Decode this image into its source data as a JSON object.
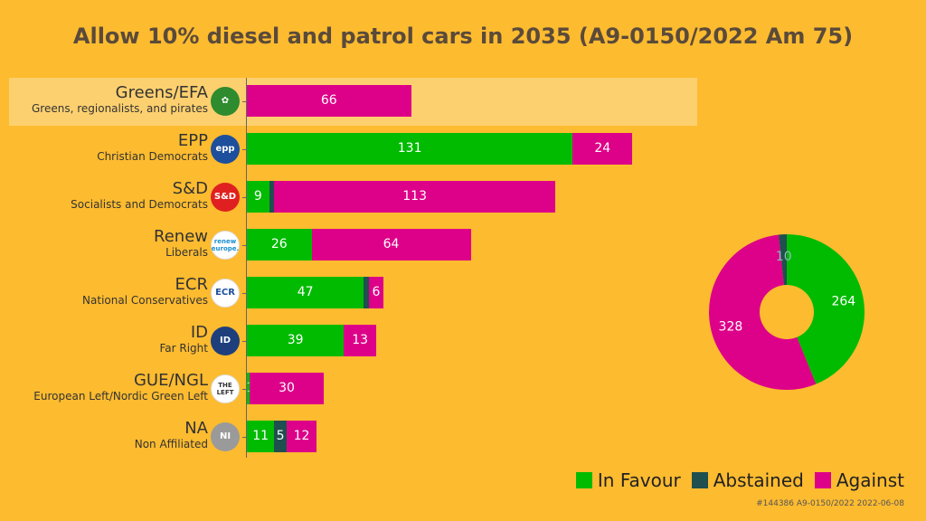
{
  "title": "Allow 10% diesel and patrol cars in 2035 (A9-0150/2022 Am 75)",
  "footnote": "#144386 A9-0150/2022 2022-06-08",
  "colors": {
    "favour": "#00BB00",
    "abstained": "#1F4F4F",
    "against": "#DD0088",
    "background": "#FDBB2F"
  },
  "legend": [
    {
      "key": "favour",
      "label": "In Favour"
    },
    {
      "key": "abstained",
      "label": "Abstained"
    },
    {
      "key": "against",
      "label": "Against"
    }
  ],
  "chart_data": [
    {
      "type": "bar",
      "orientation": "horizontal",
      "stacked": true,
      "categories": [
        {
          "name": "Greens/EFA",
          "desc": "Greens, regionalists, and pirates",
          "logo_icon": "greens-efa-logo",
          "highlight": true
        },
        {
          "name": "EPP",
          "desc": "Christian Democrats",
          "logo_icon": "epp-logo"
        },
        {
          "name": "S&D",
          "desc": "Socialists and Democrats",
          "logo_icon": "sd-logo"
        },
        {
          "name": "Renew",
          "desc": "Liberals",
          "logo_icon": "renew-europe-logo"
        },
        {
          "name": "ECR",
          "desc": "National Conservatives",
          "logo_icon": "ecr-logo"
        },
        {
          "name": "ID",
          "desc": "Far Right",
          "logo_icon": "id-logo"
        },
        {
          "name": "GUE/NGL",
          "desc": "European Left/Nordic Green Left",
          "logo_icon": "the-left-logo"
        },
        {
          "name": "NA",
          "desc": "Non Affiliated",
          "logo_icon": "ni-logo"
        }
      ],
      "series": [
        {
          "name": "In Favour",
          "key": "favour",
          "values": [
            0,
            131,
            9,
            26,
            47,
            39,
            1,
            11
          ]
        },
        {
          "name": "Abstained",
          "key": "abstained",
          "values": [
            0,
            0,
            2,
            0,
            2,
            0,
            0,
            5
          ]
        },
        {
          "name": "Against",
          "key": "against",
          "values": [
            66,
            24,
            113,
            64,
            6,
            13,
            30,
            12
          ]
        }
      ]
    },
    {
      "type": "pie",
      "donut": true,
      "slices": [
        {
          "label": "In Favour",
          "key": "favour",
          "value": 264
        },
        {
          "label": "Against",
          "key": "against",
          "value": 328
        },
        {
          "label": "Abstained",
          "key": "abstained",
          "value": 10
        }
      ]
    }
  ],
  "logos": {
    "greens-efa-logo": {
      "text": "✿",
      "bg": "#2E8B2E",
      "fg": "#ffffff"
    },
    "epp-logo": {
      "text": "epp",
      "bg": "#1E4F9C",
      "fg": "#ffffff"
    },
    "sd-logo": {
      "text": "S&D",
      "bg": "#E02020",
      "fg": "#ffffff"
    },
    "renew-europe-logo": {
      "text": "renew europe.",
      "bg": "#ffffff",
      "fg": "#1A8FD0"
    },
    "ecr-logo": {
      "text": "ECR",
      "bg": "#ffffff",
      "fg": "#1E4F9C"
    },
    "id-logo": {
      "text": "ID",
      "bg": "#1E3F7C",
      "fg": "#ffffff"
    },
    "the-left-logo": {
      "text": "THE LEFT",
      "bg": "#ffffff",
      "fg": "#333333"
    },
    "ni-logo": {
      "text": "NI",
      "bg": "#9A9A9A",
      "fg": "#ffffff"
    }
  }
}
